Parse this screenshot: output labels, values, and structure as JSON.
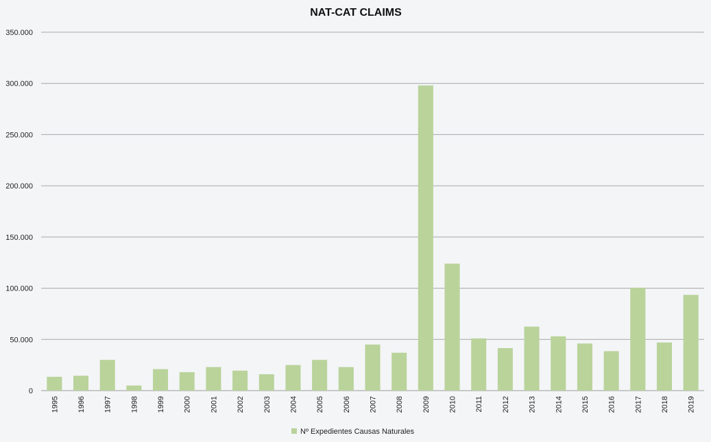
{
  "chart_data": {
    "type": "bar",
    "title": "NAT-CAT CLAIMS",
    "xlabel": "",
    "ylabel": "",
    "categories": [
      "1995",
      "1996",
      "1997",
      "1998",
      "1999",
      "2000",
      "2001",
      "2002",
      "2003",
      "2004",
      "2005",
      "2006",
      "2007",
      "2008",
      "2009",
      "2010",
      "2011",
      "2012",
      "2013",
      "2014",
      "2015",
      "2016",
      "2017",
      "2018",
      "2019"
    ],
    "series": [
      {
        "name": "Nº Expedientes Causas Naturales",
        "color": "#b9d39b",
        "values": [
          13500,
          14500,
          30000,
          5000,
          21000,
          18000,
          23000,
          19500,
          16000,
          25000,
          30000,
          23000,
          45000,
          37000,
          298000,
          124000,
          51000,
          41500,
          62500,
          53000,
          46000,
          38500,
          100500,
          47000,
          93500
        ]
      }
    ],
    "ylim": [
      0,
      350000
    ],
    "yticks": [
      0,
      50000,
      100000,
      150000,
      200000,
      250000,
      300000,
      350000
    ],
    "ytick_labels": [
      "0",
      "50.000",
      "100.000",
      "150.000",
      "200.000",
      "250.000",
      "300.000",
      "350.000"
    ],
    "grid": true,
    "legend_position": "bottom-center"
  }
}
